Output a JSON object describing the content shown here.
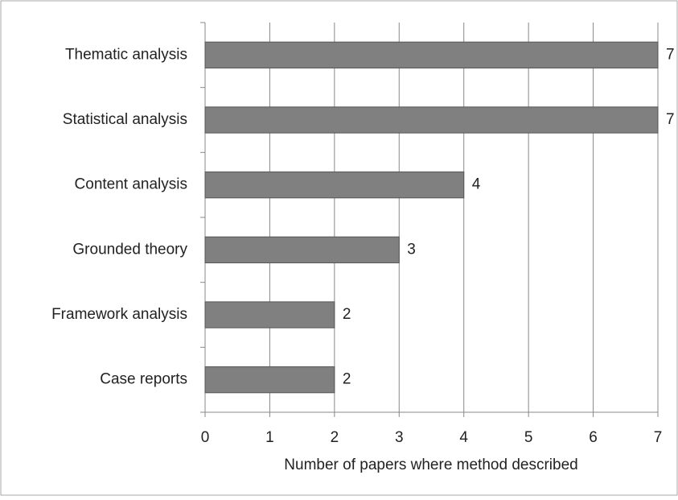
{
  "chart_data": {
    "type": "barh",
    "categories": [
      "Thematic analysis",
      "Statistical analysis",
      "Content analysis",
      "Grounded theory",
      "Framework analysis",
      "Case reports"
    ],
    "values": [
      7,
      7,
      4,
      3,
      2,
      2
    ],
    "color": "#808080",
    "xlabel": "Number of papers where method described",
    "xlim": [
      0,
      7
    ],
    "xticks": [
      0,
      1,
      2,
      3,
      4,
      5,
      6,
      7
    ],
    "grid": true
  }
}
